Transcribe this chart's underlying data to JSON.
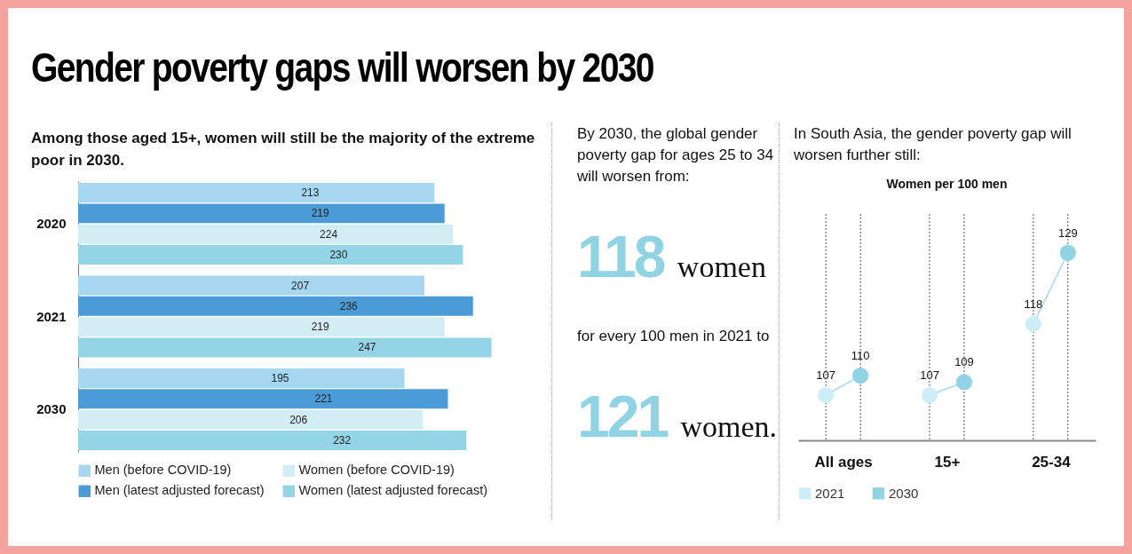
{
  "chart_data": [
    {
      "type": "bar",
      "orientation": "horizontal",
      "title": "Gender poverty gaps will worsen by 2030",
      "subtitle": "Among those aged 15+, women will still be the majority of the extreme poor in 2030.",
      "categories": [
        "2020",
        "2021",
        "2030"
      ],
      "series": [
        {
          "name": "Men (before COVID-19)",
          "color": "#a6d6f0",
          "values": [
            213,
            207,
            195
          ]
        },
        {
          "name": "Men (latest adjusted forecast)",
          "color": "#4a9bd6",
          "values": [
            219,
            236,
            221
          ]
        },
        {
          "name": "Women (before COVID-19)",
          "color": "#d3edf4",
          "values": [
            224,
            219,
            206
          ]
        },
        {
          "name": "Women (latest adjusted forecast)",
          "color": "#93d5e6",
          "values": [
            230,
            247,
            232
          ]
        }
      ],
      "data_labels": true,
      "legend": "bottom"
    },
    {
      "type": "other",
      "annotations": [
        "By 2030, the global gender poverty gap for ages 25 to 34 will worsen from:",
        "118 women",
        "for every 100 men in 2021 to",
        "121 women."
      ]
    },
    {
      "type": "scatter",
      "title": "In South Asia, the gender poverty gap will worsen further still:",
      "subtitle": "Women per 100 men",
      "categories": [
        "All ages",
        "15+",
        "25-34"
      ],
      "series": [
        {
          "name": "2021",
          "color": "#cdeef6",
          "values": [
            107,
            107,
            118
          ]
        },
        {
          "name": "2030",
          "color": "#8fd3e5",
          "values": [
            110,
            109,
            129
          ]
        }
      ],
      "data_labels": true,
      "legend": "bottom left",
      "grid": "x"
    }
  ]
}
